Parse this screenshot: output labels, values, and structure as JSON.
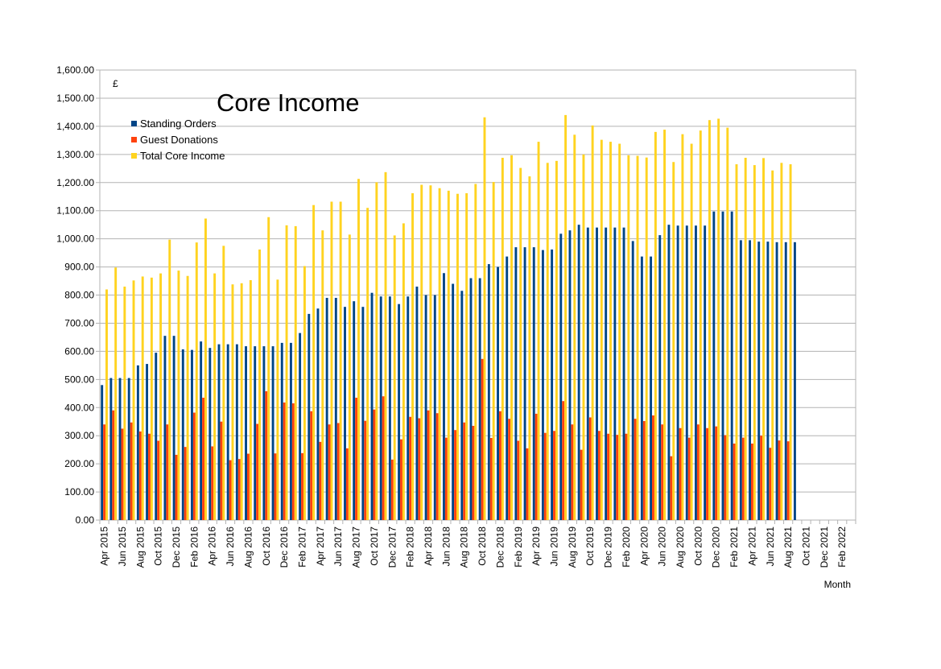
{
  "chart_data": {
    "type": "bar",
    "title": "Core Income",
    "ylabel": "£",
    "xlabel": "Month",
    "ylim": [
      0,
      1600
    ],
    "ytick_step": 100,
    "ytick_labels": [
      "0.00",
      "100.00",
      "200.00",
      "300.00",
      "400.00",
      "500.00",
      "600.00",
      "700.00",
      "800.00",
      "900.00",
      "1,000.00",
      "1,100.00",
      "1,200.00",
      "1,300.00",
      "1,400.00",
      "1,500.00",
      "1,600.00"
    ],
    "grid": true,
    "legend_position": "top-left",
    "categories": [
      "Apr 2015",
      "May 2015",
      "Jun 2015",
      "Jul 2015",
      "Aug 2015",
      "Sep 2015",
      "Oct 2015",
      "Nov 2015",
      "Dec 2015",
      "Jan 2016",
      "Feb 2016",
      "Mar 2016",
      "Apr 2016",
      "May 2016",
      "Jun 2016",
      "Jul 2016",
      "Aug 2016",
      "Sep 2016",
      "Oct 2016",
      "Nov 2016",
      "Dec 2016",
      "Jan 2017",
      "Feb 2017",
      "Mar 2017",
      "Apr 2017",
      "May 2017",
      "Jun 2017",
      "Jul 2017",
      "Aug 2017",
      "Sep 2017",
      "Oct 2017",
      "Nov 2017",
      "Dec 2017",
      "Jan 2018",
      "Feb 2018",
      "Mar 2018",
      "Apr 2018",
      "May 2018",
      "Jun 2018",
      "Jul 2018",
      "Aug 2018",
      "Sep 2018",
      "Oct 2018",
      "Nov 2018",
      "Dec 2018",
      "Jan 2019",
      "Feb 2019",
      "Mar 2019",
      "Apr 2019",
      "May 2019",
      "Jun 2019",
      "Jul 2019",
      "Aug 2019",
      "Sep 2019",
      "Oct 2019",
      "Nov 2019",
      "Dec 2019",
      "Jan 2020",
      "Feb 2020",
      "Mar 2020",
      "Apr 2020",
      "May 2020",
      "Jun 2020",
      "Jul 2020",
      "Aug 2020",
      "Sep 2020",
      "Oct 2020",
      "Nov 2020",
      "Dec 2020",
      "Jan 2021",
      "Feb 2021",
      "Mar 2021",
      "Apr 2021",
      "May 2021",
      "Jun 2021",
      "Jul 2021",
      "Aug 2021",
      "Sep 2021",
      "Oct 2021",
      "Nov 2021",
      "Dec 2021",
      "Jan 2022",
      "Feb 2022",
      "Mar 2022"
    ],
    "tick_labels": [
      "Apr 2015",
      "Jun 2015",
      "Aug 2015",
      "Oct 2015",
      "Dec 2015",
      "Feb 2016",
      "Apr 2016",
      "Jun 2016",
      "Aug 2016",
      "Oct 2016",
      "Dec 2016",
      "Feb 2017",
      "Apr 2017",
      "Jun 2017",
      "Aug 2017",
      "Oct 2017",
      "Dec 2017",
      "Feb 2018",
      "Apr 2018",
      "Jun 2018",
      "Aug 2018",
      "Oct 2018",
      "Dec 2018",
      "Feb 2019",
      "Apr 2019",
      "Jun 2019",
      "Aug 2019",
      "Oct 2019",
      "Dec 2019",
      "Feb 2020",
      "Apr 2020",
      "Jun 2020",
      "Aug 2020",
      "Oct 2020",
      "Dec 2020",
      "Feb 2021",
      "Apr 2021",
      "Jun 2021",
      "Aug 2021",
      "Oct 2021",
      "Dec 2021",
      "Feb 2022"
    ],
    "series": [
      {
        "name": "Standing Orders",
        "color": "#004586",
        "values": [
          480,
          505,
          505,
          505,
          550,
          555,
          595,
          655,
          655,
          607,
          605,
          635,
          612,
          625,
          625,
          625,
          618,
          618,
          618,
          618,
          630,
          630,
          665,
          733,
          752,
          790,
          790,
          758,
          778,
          758,
          808,
          795,
          795,
          768,
          795,
          830,
          800,
          800,
          878,
          840,
          815,
          860,
          860,
          910,
          900,
          937,
          970,
          970,
          970,
          960,
          962,
          1018,
          1030,
          1050,
          1040,
          1040,
          1040,
          1040,
          1040,
          992,
          937,
          937,
          1013,
          1050,
          1047,
          1047,
          1047,
          1047,
          1097,
          1097,
          1097,
          995,
          995,
          990,
          990,
          988,
          988,
          988,
          null,
          null,
          null,
          null,
          null,
          null
        ]
      },
      {
        "name": "Guest Donations",
        "color": "#ff420e",
        "values": [
          340,
          390,
          325,
          347,
          315,
          307,
          282,
          340,
          232,
          260,
          382,
          435,
          262,
          350,
          213,
          217,
          236,
          342,
          458,
          237,
          418,
          415,
          238,
          387,
          278,
          340,
          345,
          255,
          435,
          353,
          393,
          440,
          215,
          287,
          367,
          362,
          390,
          380,
          293,
          320,
          347,
          335,
          573,
          292,
          387,
          360,
          282,
          255,
          378,
          310,
          317,
          423,
          340,
          250,
          365,
          317,
          307,
          303,
          307,
          360,
          352,
          372,
          340,
          227,
          327,
          293,
          340,
          327,
          333,
          302,
          272,
          293,
          272,
          300,
          257,
          283,
          280,
          null,
          null,
          null,
          null,
          null,
          null,
          null
        ]
      },
      {
        "name": "Total Core Income",
        "color": "#ffd320",
        "values": [
          820,
          898,
          830,
          852,
          866,
          862,
          877,
          997,
          887,
          868,
          987,
          1072,
          877,
          975,
          838,
          842,
          853,
          962,
          1077,
          855,
          1048,
          1045,
          903,
          1120,
          1030,
          1132,
          1132,
          1015,
          1213,
          1110,
          1201,
          1237,
          1012,
          1055,
          1162,
          1192,
          1190,
          1180,
          1171,
          1160,
          1162,
          1195,
          1432,
          1202,
          1288,
          1297,
          1252,
          1222,
          1345,
          1270,
          1277,
          1440,
          1370,
          1300,
          1403,
          1352,
          1345,
          1338,
          1297,
          1295,
          1289,
          1380,
          1388,
          1273,
          1372,
          1338,
          1385,
          1422,
          1427,
          1395,
          1265,
          1288,
          1262,
          1287,
          1243,
          1270,
          1265,
          null,
          null,
          null,
          null,
          null,
          null,
          null
        ]
      }
    ]
  }
}
